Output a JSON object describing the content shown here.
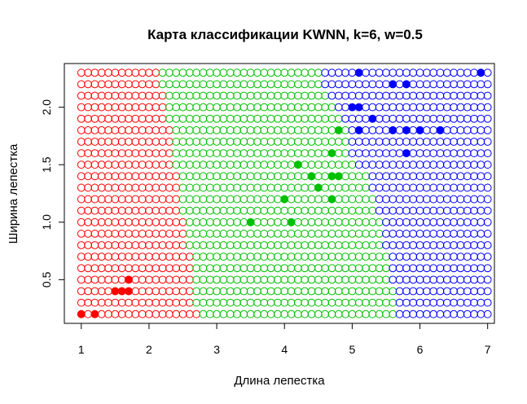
{
  "chart_data": {
    "type": "scatter",
    "title": "Карта классификации KWNN, k=6, w=0.5",
    "xlabel": "Длина лепестка",
    "ylabel": "Ширина лепестка",
    "xlim": [
      0.75,
      7.1
    ],
    "ylim": [
      0.12,
      2.38
    ],
    "x_ticks": [
      "1",
      "2",
      "3",
      "4",
      "5",
      "6",
      "7"
    ],
    "y_ticks": [
      "0.5",
      "1.0",
      "1.5",
      "2.0"
    ],
    "colors": {
      "setosa": "#ff0000",
      "versicolor": "#00c000",
      "virginica": "#0000ff"
    },
    "grid_map": {
      "x_start": 1.0,
      "x_end": 7.0,
      "x_step": 0.1,
      "y_start": 0.2,
      "y_end": 2.3,
      "y_step": 0.1,
      "rows": [
        {
          "y": 0.2,
          "setosa_max_x": 2.7,
          "versicolor_max_x": 5.6
        },
        {
          "y": 0.3,
          "setosa_max_x": 2.6,
          "versicolor_max_x": 5.6
        },
        {
          "y": 0.4,
          "setosa_max_x": 2.6,
          "versicolor_max_x": 5.6
        },
        {
          "y": 0.5,
          "setosa_max_x": 2.6,
          "versicolor_max_x": 5.5
        },
        {
          "y": 0.6,
          "setosa_max_x": 2.6,
          "versicolor_max_x": 5.5
        },
        {
          "y": 0.7,
          "setosa_max_x": 2.6,
          "versicolor_max_x": 5.5
        },
        {
          "y": 0.8,
          "setosa_max_x": 2.5,
          "versicolor_max_x": 5.4
        },
        {
          "y": 0.9,
          "setosa_max_x": 2.5,
          "versicolor_max_x": 5.4
        },
        {
          "y": 1.0,
          "setosa_max_x": 2.5,
          "versicolor_max_x": 5.4
        },
        {
          "y": 1.1,
          "setosa_max_x": 2.4,
          "versicolor_max_x": 5.3
        },
        {
          "y": 1.2,
          "setosa_max_x": 2.4,
          "versicolor_max_x": 5.3
        },
        {
          "y": 1.3,
          "setosa_max_x": 2.4,
          "versicolor_max_x": 5.2
        },
        {
          "y": 1.4,
          "setosa_max_x": 2.4,
          "versicolor_max_x": 5.2
        },
        {
          "y": 1.5,
          "setosa_max_x": 2.3,
          "versicolor_max_x": 5.0
        },
        {
          "y": 1.6,
          "setosa_max_x": 2.3,
          "versicolor_max_x": 4.9
        },
        {
          "y": 1.7,
          "setosa_max_x": 2.3,
          "versicolor_max_x": 4.9
        },
        {
          "y": 1.8,
          "setosa_max_x": 2.3,
          "versicolor_max_x": 4.9
        },
        {
          "y": 1.9,
          "setosa_max_x": 2.2,
          "versicolor_max_x": 4.8
        },
        {
          "y": 2.0,
          "setosa_max_x": 2.2,
          "versicolor_max_x": 4.7
        },
        {
          "y": 2.1,
          "setosa_max_x": 2.2,
          "versicolor_max_x": 4.6
        },
        {
          "y": 2.2,
          "setosa_max_x": 2.1,
          "versicolor_max_x": 4.5
        },
        {
          "y": 2.3,
          "setosa_max_x": 2.1,
          "versicolor_max_x": 4.5
        }
      ]
    },
    "series": [
      {
        "class": "setosa",
        "color": "#ff0000",
        "points": [
          [
            1.0,
            0.2
          ],
          [
            1.2,
            0.2
          ],
          [
            1.5,
            0.4
          ],
          [
            1.6,
            0.4
          ],
          [
            1.7,
            0.4
          ],
          [
            1.7,
            0.5
          ]
        ]
      },
      {
        "class": "versicolor",
        "color": "#00c000",
        "points": [
          [
            3.5,
            1.0
          ],
          [
            4.1,
            1.0
          ],
          [
            4.0,
            1.2
          ],
          [
            4.7,
            1.2
          ],
          [
            4.5,
            1.3
          ],
          [
            4.4,
            1.4
          ],
          [
            4.7,
            1.4
          ],
          [
            4.8,
            1.4
          ],
          [
            4.2,
            1.5
          ],
          [
            4.7,
            1.6
          ],
          [
            4.8,
            1.8
          ]
        ]
      },
      {
        "class": "virginica",
        "color": "#0000ff",
        "points": [
          [
            5.1,
            2.3
          ],
          [
            6.9,
            2.3
          ],
          [
            5.6,
            2.2
          ],
          [
            5.8,
            2.2
          ],
          [
            5.0,
            2.0
          ],
          [
            5.1,
            2.0
          ],
          [
            5.3,
            1.9
          ],
          [
            5.1,
            1.8
          ],
          [
            5.6,
            1.8
          ],
          [
            5.8,
            1.8
          ],
          [
            6.0,
            1.8
          ],
          [
            6.3,
            1.8
          ],
          [
            5.8,
            1.6
          ]
        ]
      }
    ]
  }
}
